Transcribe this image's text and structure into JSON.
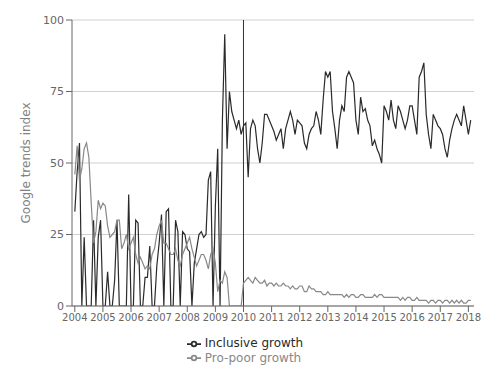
{
  "chart_data": {
    "type": "line",
    "ylabel": "Google trends index",
    "xlim": [
      2003.9,
      2018.2
    ],
    "xticks": [
      2004,
      2005,
      2006,
      2007,
      2008,
      2009,
      2010,
      2011,
      2012,
      2013,
      2014,
      2015,
      2016,
      2017,
      2018
    ],
    "ylim": [
      0,
      100
    ],
    "yticks": [
      0,
      25,
      50,
      75,
      100
    ],
    "grid": "y",
    "legend": "bottom",
    "vline": {
      "x": 2010.0,
      "color": "#333333"
    },
    "x": [
      2004,
      2004.0833333333,
      2004.1666666667,
      2004.25,
      2004.3333333333,
      2004.4166666667,
      2004.5,
      2004.5833333333,
      2004.6666666667,
      2004.75,
      2004.8333333333,
      2004.9166666667,
      2005,
      2005.0833333333,
      2005.1666666667,
      2005.25,
      2005.3333333333,
      2005.4166666667,
      2005.5,
      2005.5833333333,
      2005.6666666667,
      2005.75,
      2005.8333333333,
      2005.9166666667,
      2006,
      2006.0833333333,
      2006.1666666667,
      2006.25,
      2006.3333333333,
      2006.4166666667,
      2006.5,
      2006.5833333333,
      2006.6666666667,
      2006.75,
      2006.8333333333,
      2006.9166666667,
      2007,
      2007.0833333333,
      2007.1666666667,
      2007.25,
      2007.3333333333,
      2007.4166666667,
      2007.5,
      2007.5833333333,
      2007.6666666667,
      2007.75,
      2007.8333333333,
      2007.9166666667,
      2008,
      2008.0833333333,
      2008.1666666667,
      2008.25,
      2008.3333333333,
      2008.4166666667,
      2008.5,
      2008.5833333333,
      2008.6666666667,
      2008.75,
      2008.8333333333,
      2008.9166666667,
      2009,
      2009.0833333333,
      2009.1666666667,
      2009.25,
      2009.3333333333,
      2009.4166666667,
      2009.5,
      2009.5833333333,
      2009.6666666667,
      2009.75,
      2009.8333333333,
      2009.9166666667,
      2010,
      2010.0833333333,
      2010.1666666667,
      2010.25,
      2010.3333333333,
      2010.4166666667,
      2010.5,
      2010.5833333333,
      2010.6666666667,
      2010.75,
      2010.8333333333,
      2010.9166666667,
      2011,
      2011.0833333333,
      2011.1666666667,
      2011.25,
      2011.3333333333,
      2011.4166666667,
      2011.5,
      2011.5833333333,
      2011.6666666667,
      2011.75,
      2011.8333333333,
      2011.9166666667,
      2012,
      2012.0833333333,
      2012.1666666667,
      2012.25,
      2012.3333333333,
      2012.4166666667,
      2012.5,
      2012.5833333333,
      2012.6666666667,
      2012.75,
      2012.8333333333,
      2012.9166666667,
      2013,
      2013.0833333333,
      2013.1666666667,
      2013.25,
      2013.3333333333,
      2013.4166666667,
      2013.5,
      2013.5833333333,
      2013.6666666667,
      2013.75,
      2013.8333333333,
      2013.9166666667,
      2014,
      2014.0833333333,
      2014.1666666667,
      2014.25,
      2014.3333333333,
      2014.4166666667,
      2014.5,
      2014.5833333333,
      2014.6666666667,
      2014.75,
      2014.8333333333,
      2014.9166666667,
      2015,
      2015.0833333333,
      2015.1666666667,
      2015.25,
      2015.3333333333,
      2015.4166666667,
      2015.5,
      2015.5833333333,
      2015.6666666667,
      2015.75,
      2015.8333333333,
      2015.9166666667,
      2016,
      2016.0833333333,
      2016.1666666667,
      2016.25,
      2016.3333333333,
      2016.4166666667,
      2016.5,
      2016.5833333333,
      2016.6666666667,
      2016.75,
      2016.8333333333,
      2016.9166666667,
      2017,
      2017.0833333333,
      2017.1666666667,
      2017.25,
      2017.3333333333,
      2017.4166666667,
      2017.5,
      2017.5833333333,
      2017.6666666667,
      2017.75,
      2017.8333333333,
      2017.9166666667,
      2018,
      2018.0833333333
    ],
    "series": [
      {
        "name": "Inclusive growth",
        "color": "#2a2a2a",
        "values": [
          33,
          47,
          57,
          0,
          24,
          0,
          0,
          0,
          30,
          0,
          24,
          30,
          0,
          0,
          12,
          0,
          0,
          9,
          30,
          0,
          0,
          0,
          0,
          39,
          0,
          0,
          30,
          29,
          0,
          0,
          10,
          10,
          21,
          0,
          0,
          14,
          22,
          32,
          0,
          33,
          34,
          0,
          0,
          30,
          26,
          0,
          26,
          25,
          20,
          19,
          0,
          15,
          20,
          25,
          26,
          24,
          25,
          44,
          47,
          0,
          35,
          55,
          0,
          65,
          95,
          55,
          75,
          68,
          65,
          62,
          65,
          60,
          63,
          64,
          45,
          62,
          65,
          63,
          55,
          50,
          57,
          67,
          67,
          65,
          63,
          61,
          58,
          60,
          62,
          55,
          62,
          65,
          68,
          65,
          60,
          65,
          64,
          63,
          57,
          55,
          60,
          62,
          63,
          68,
          65,
          60,
          72,
          82,
          80,
          82,
          68,
          62,
          55,
          65,
          70,
          68,
          80,
          82,
          80,
          78,
          65,
          60,
          73,
          68,
          69,
          65,
          63,
          56,
          58,
          55,
          53,
          50,
          70,
          68,
          65,
          72,
          65,
          62,
          70,
          68,
          65,
          62,
          65,
          70,
          70,
          65,
          60,
          80,
          82,
          85,
          67,
          60,
          55,
          67,
          65,
          63,
          62,
          60,
          55,
          52,
          58,
          62,
          65,
          67,
          65,
          63,
          70,
          65,
          60,
          65
        ]
      },
      {
        "name": "Pro-poor growth",
        "color": "#888888",
        "values": [
          46,
          56,
          44,
          48,
          55,
          57,
          52,
          36,
          22,
          26,
          37,
          34,
          36,
          35,
          28,
          24,
          25,
          26,
          30,
          30,
          20,
          22,
          25,
          20,
          22,
          24,
          18,
          15,
          17,
          15,
          13,
          14,
          13,
          18,
          20,
          25,
          28,
          30,
          22,
          22,
          20,
          18,
          18,
          20,
          16,
          14,
          18,
          20,
          22,
          24,
          20,
          17,
          14,
          16,
          18,
          18,
          16,
          13,
          18,
          20,
          15,
          5,
          9,
          8,
          12,
          10,
          0,
          0,
          0,
          0,
          0,
          0,
          8,
          9,
          10,
          9,
          8,
          10,
          9,
          8,
          8,
          9,
          7,
          8,
          8,
          7,
          8,
          7,
          7,
          8,
          7,
          7,
          6,
          7,
          6,
          6,
          7,
          7,
          5,
          5,
          7,
          6,
          6,
          5,
          5,
          5,
          4,
          4,
          5,
          4,
          4,
          4,
          4,
          4,
          4,
          3,
          4,
          3,
          4,
          4,
          3,
          3,
          4,
          4,
          3,
          3,
          3,
          3,
          4,
          3,
          4,
          4,
          3,
          3,
          3,
          3,
          3,
          3,
          3,
          2,
          3,
          2,
          3,
          3,
          2,
          2,
          3,
          2,
          2,
          2,
          2,
          1,
          2,
          2,
          1,
          2,
          2,
          1,
          2,
          2,
          1,
          2,
          1,
          2,
          1,
          2,
          1,
          1,
          2,
          2
        ]
      }
    ]
  }
}
